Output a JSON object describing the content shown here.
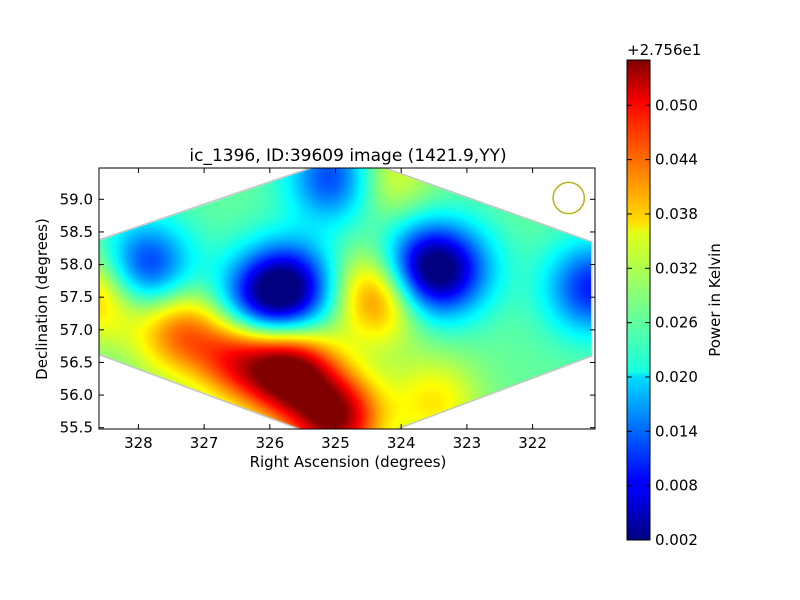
{
  "chart_data": {
    "type": "heatmap",
    "title": "ic_1396, ID:39609 image (1421.9,YY)",
    "xlabel": "Right Ascension (degrees)",
    "ylabel": "Declination (degrees)",
    "xlim": [
      328.6,
      321.05
    ],
    "ylim": [
      55.48,
      59.48
    ],
    "x_ticks": [
      328,
      327,
      326,
      325,
      324,
      323,
      322
    ],
    "y_ticks": [
      55.5,
      56.0,
      56.5,
      57.0,
      57.5,
      58.0,
      58.5,
      59.0
    ],
    "x_tick_labels": [
      "328",
      "327",
      "326",
      "325",
      "324",
      "323",
      "322"
    ],
    "y_tick_labels": [
      "55.5",
      "56.0",
      "56.5",
      "57.0",
      "57.5",
      "58.0",
      "58.5",
      "59.0"
    ],
    "colormap": "jet",
    "colorbar": {
      "label": "Power in Kelvin",
      "offset_text": "+2.756e1",
      "range": [
        0.002,
        0.055
      ],
      "ticks": [
        0.002,
        0.008,
        0.014,
        0.02,
        0.026,
        0.032,
        0.038,
        0.044,
        0.05
      ],
      "tick_labels": [
        "0.002",
        "0.008",
        "0.014",
        "0.020",
        "0.026",
        "0.032",
        "0.038",
        "0.044",
        "0.050"
      ]
    },
    "background_level": 0.027,
    "map_boundary": [
      [
        324.8,
        59.68
      ],
      [
        328.6,
        58.38
      ],
      [
        328.6,
        56.62
      ],
      [
        324.8,
        55.2
      ],
      [
        321.1,
        56.6
      ],
      [
        321.1,
        58.35
      ]
    ],
    "features": [
      {
        "kind": "min",
        "ra": 325.7,
        "dec": 57.65,
        "value": 0.005
      },
      {
        "kind": "min",
        "ra": 326.2,
        "dec": 57.4,
        "value": 0.012
      },
      {
        "kind": "min",
        "ra": 323.7,
        "dec": 57.9,
        "value": 0.004
      },
      {
        "kind": "min",
        "ra": 327.9,
        "dec": 57.95,
        "value": 0.009
      },
      {
        "kind": "min",
        "ra": 321.1,
        "dec": 57.65,
        "value": 0.01
      },
      {
        "kind": "min",
        "ra": 325.0,
        "dec": 59.35,
        "value": 0.01
      },
      {
        "kind": "min",
        "ra": 323.2,
        "dec": 57.95,
        "value": 0.015
      },
      {
        "kind": "max",
        "ra": 325.7,
        "dec": 56.35,
        "value": 0.055
      },
      {
        "kind": "max",
        "ra": 325.0,
        "dec": 55.65,
        "value": 0.053
      },
      {
        "kind": "max",
        "ra": 326.5,
        "dec": 56.6,
        "value": 0.045
      },
      {
        "kind": "max",
        "ra": 324.3,
        "dec": 57.55,
        "value": 0.046
      },
      {
        "kind": "max",
        "ra": 327.4,
        "dec": 57.0,
        "value": 0.042
      },
      {
        "kind": "max",
        "ra": 328.6,
        "dec": 57.55,
        "value": 0.04
      },
      {
        "kind": "max",
        "ra": 323.5,
        "dec": 55.9,
        "value": 0.036
      },
      {
        "kind": "max",
        "ra": 324.3,
        "dec": 59.35,
        "value": 0.036
      }
    ],
    "beam_circle": {
      "ra": 321.45,
      "dec": 59.02,
      "radius_deg": 0.35,
      "color": "#b5b51a"
    }
  }
}
